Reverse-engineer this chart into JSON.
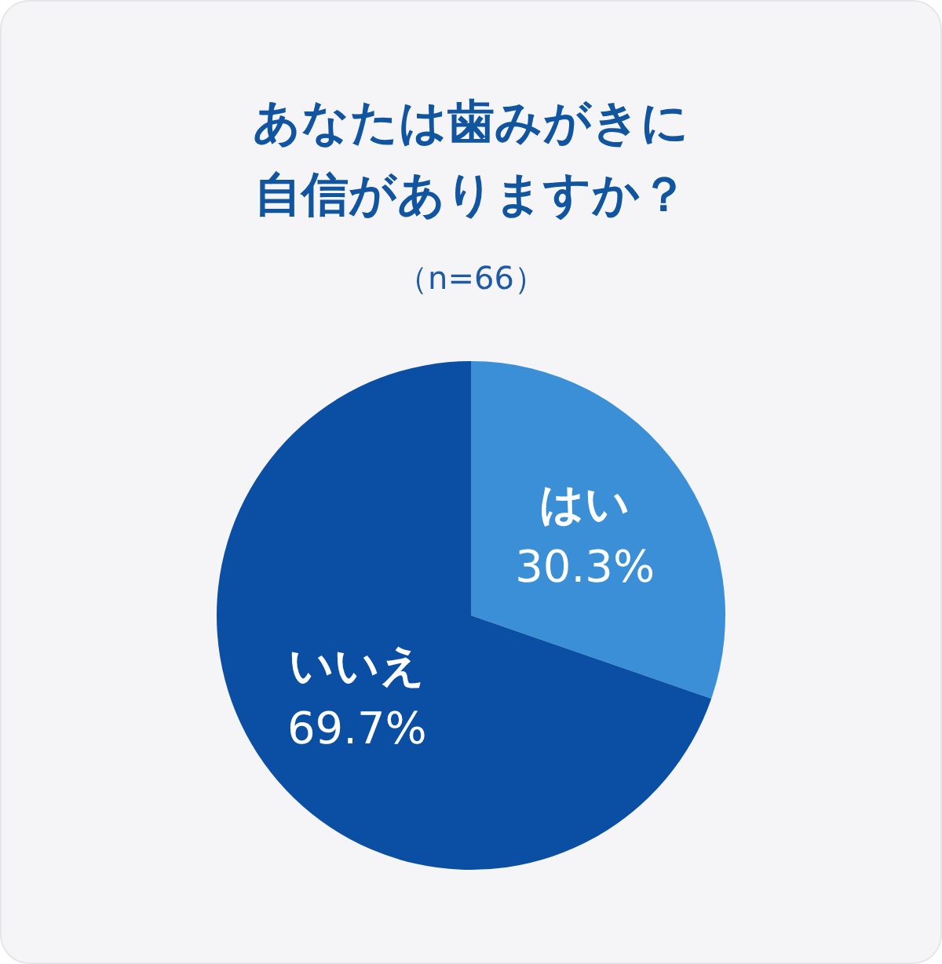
{
  "chart_data": {
    "type": "pie",
    "title": "あなたは歯みがきに自信がありますか？",
    "subtitle": "（n=66）",
    "categories": [
      "はい",
      "いいえ"
    ],
    "values": [
      30.3,
      69.7
    ],
    "colors": [
      "#3a8fd6",
      "#0a4fa3"
    ],
    "value_labels": [
      "30.3%",
      "69.7%"
    ]
  }
}
